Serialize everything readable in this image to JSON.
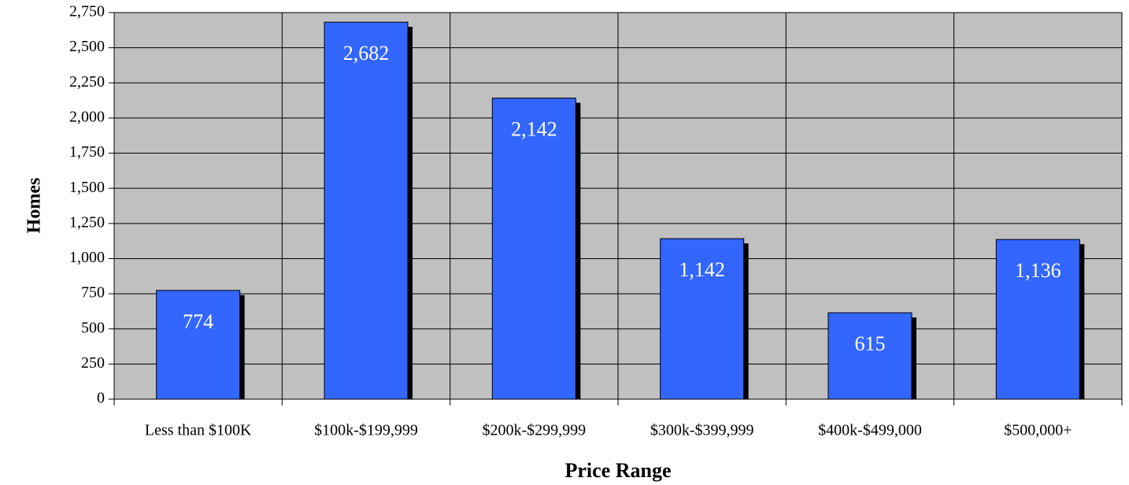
{
  "chart_data": {
    "type": "bar",
    "x_label": "Price Range",
    "y_label": "Homes",
    "categories": [
      "Less than $100K",
      "$100k-$199,999",
      "$200k-$299,999",
      "$300k-$399,999",
      "$400k-$499,000",
      "$500,000+"
    ],
    "values": [
      774,
      2682,
      2142,
      1142,
      615,
      1136
    ],
    "value_labels": [
      "774",
      "2,682",
      "2,142",
      "1,142",
      "615",
      "1,136"
    ],
    "color": "#3366ff",
    "ylim": [
      0,
      2750
    ],
    "yticks": [
      0,
      250,
      500,
      750,
      {
        "value": 1000,
        "label": "1,000"
      },
      {
        "value": 1250,
        "label": "1,250"
      },
      {
        "value": 1500,
        "label": "1,500"
      },
      {
        "value": 1750,
        "label": "1,750"
      },
      {
        "value": 2000,
        "label": "2,000"
      },
      {
        "value": 2250,
        "label": "2,250"
      },
      {
        "value": 2500,
        "label": "2,500"
      },
      {
        "value": 2750,
        "label": "2,750"
      }
    ],
    "grid": true
  }
}
